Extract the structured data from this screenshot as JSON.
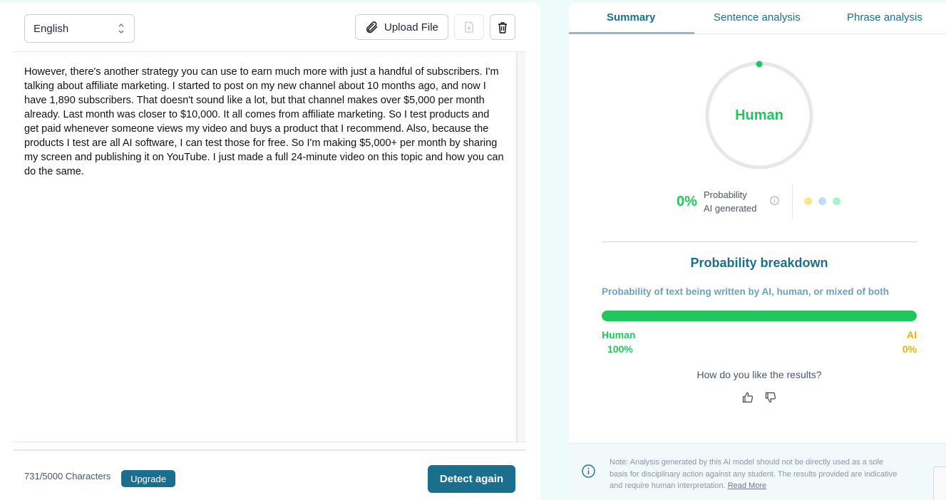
{
  "editor": {
    "language": "English",
    "upload_label": "Upload File",
    "text": "However, there's another strategy you can use to earn much more with just a handful of subscribers. I'm talking about affiliate marketing. I started to post on my new channel about 10 months ago, and now I have 1,890 subscribers. That doesn't sound like a lot, but that channel makes over $5,000 per month already. Last month was closer to $10,000. It all comes from affiliate marketing. So I test products and get paid whenever someone views my video and buys a product that I recommend. Also, because the products I test are all AI software, I can test those for free. So I'm making $5,000+ per month by sharing my screen and publishing it on YouTube. I just made a full 24-minute video on this topic and how you can do the same.",
    "char_count": "731/5000 Characters",
    "upgrade_label": "Upgrade",
    "detect_label": "Detect again"
  },
  "results": {
    "tabs": [
      {
        "label": "Summary",
        "active": true
      },
      {
        "label": "Sentence analysis",
        "active": false
      },
      {
        "label": "Phrase analysis",
        "active": false
      }
    ],
    "verdict": "Human",
    "ai_probability": "0%",
    "prob_label_1": "Probability",
    "prob_label_2": "AI generated",
    "legend_colors": [
      "#fde68a",
      "#bfdbfe",
      "#a7f3d0"
    ],
    "breakdown_title": "Probability breakdown",
    "breakdown_subtitle": "Probability of text being written by AI, human, or mixed of both",
    "human_label": "Human",
    "human_pct": "100%",
    "human_fraction": 1.0,
    "ai_label": "AI",
    "ai_pct": "0%",
    "feedback_question": "How do you like the results?",
    "note_line1": "Note: Analysis generated by this AI model should not be directly used as a sole",
    "note_line2": "basis for disciplinary action against any student. The results provided are indicative",
    "note_line3": "and require human interpretation.",
    "read_more": "Read More"
  },
  "colors": {
    "accent": "#1b6f8e",
    "human_green": "#22c55e",
    "ai_yellow": "#eab308"
  }
}
